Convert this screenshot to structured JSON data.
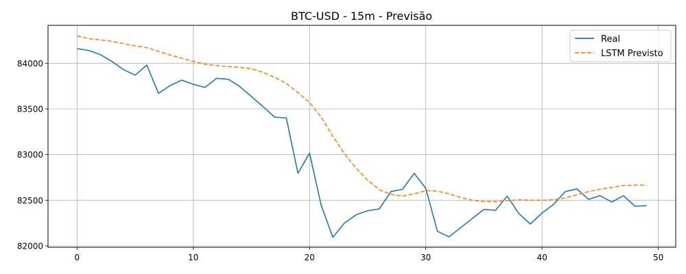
{
  "chart_data": {
    "type": "line",
    "title": "BTC-USD - 15m - Previsão",
    "xlabel": "",
    "ylabel": "",
    "xlim": [
      -2.5,
      51.5
    ],
    "ylim": [
      81985,
      84415
    ],
    "xticks": [
      0,
      10,
      20,
      30,
      40,
      50
    ],
    "xtick_labels": [
      "0",
      "10",
      "20",
      "30",
      "40",
      "50"
    ],
    "yticks": [
      82000,
      82500,
      83000,
      83500,
      84000
    ],
    "ytick_labels": [
      "82000",
      "82500",
      "83000",
      "83500",
      "84000"
    ],
    "grid": true,
    "legend_position": "top-right",
    "x": [
      0,
      1,
      2,
      3,
      4,
      5,
      6,
      7,
      8,
      9,
      10,
      11,
      12,
      13,
      14,
      15,
      16,
      17,
      18,
      19,
      20,
      21,
      22,
      23,
      24,
      25,
      26,
      27,
      28,
      29,
      30,
      31,
      32,
      33,
      34,
      35,
      36,
      37,
      38,
      39,
      40,
      41,
      42,
      43,
      44,
      45,
      46,
      47,
      48,
      49
    ],
    "series": [
      {
        "name": "Real",
        "color": "#1f77b4",
        "style": "solid",
        "values": [
          84160,
          84140,
          84095,
          84020,
          83930,
          83870,
          83980,
          83670,
          83755,
          83815,
          83770,
          83735,
          83835,
          83825,
          83745,
          83635,
          83525,
          83410,
          83400,
          82795,
          83015,
          82445,
          82095,
          82250,
          82340,
          82385,
          82405,
          82595,
          82620,
          82795,
          82630,
          82160,
          82100,
          82200,
          82300,
          82400,
          82390,
          82545,
          82355,
          82240,
          82360,
          82455,
          82595,
          82625,
          82510,
          82550,
          82480,
          82550,
          82435,
          82440
        ]
      },
      {
        "name": "LSTM Previsto",
        "color": "#ff7f0e",
        "style": "dashed",
        "values": [
          84300,
          84270,
          84255,
          84240,
          84215,
          84190,
          84170,
          84130,
          84090,
          84055,
          84020,
          83990,
          83975,
          83965,
          83955,
          83940,
          83900,
          83845,
          83780,
          83680,
          83570,
          83410,
          83200,
          83010,
          82850,
          82720,
          82615,
          82565,
          82545,
          82570,
          82605,
          82600,
          82570,
          82530,
          82500,
          82485,
          82485,
          82495,
          82505,
          82500,
          82500,
          82505,
          82525,
          82560,
          82595,
          82620,
          82640,
          82660,
          82665,
          82665
        ]
      }
    ]
  }
}
